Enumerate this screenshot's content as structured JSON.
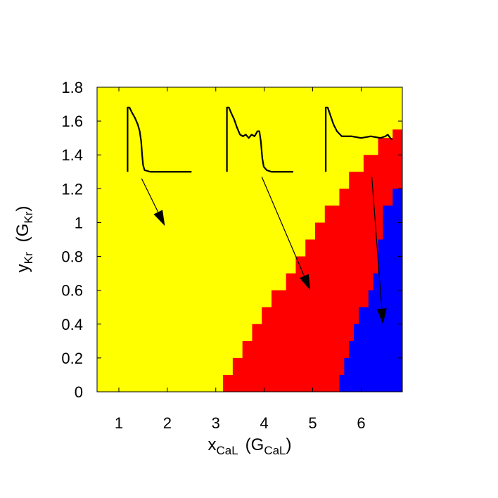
{
  "chart_data": {
    "type": "heatmap",
    "title": "",
    "x_ticks": [
      "1",
      "2",
      "3",
      "4",
      "5",
      "6"
    ],
    "x_tick_values": [
      1,
      2,
      3,
      4,
      5,
      6
    ],
    "y_ticks": [
      "0",
      "0.2",
      "0.4",
      "0.6",
      "0.8",
      "1",
      "1.2",
      "1.4",
      "1.6",
      "1.8"
    ],
    "y_tick_values": [
      0,
      0.2,
      0.4,
      0.6,
      0.8,
      1.0,
      1.2,
      1.4,
      1.6,
      1.8
    ],
    "xlim": [
      0.55,
      6.85
    ],
    "ylim": [
      0,
      1.8
    ],
    "xlabel": {
      "main": "x",
      "sub": "CaL",
      "paren_main": "(G",
      "paren_sub": "CaL",
      "paren_close": ")"
    },
    "ylabel": {
      "main": "y",
      "sub": "Kr",
      "paren_main": "(G",
      "paren_sub": "Kr",
      "paren_close": ")"
    },
    "region_colors": {
      "region_1": "#ffff00",
      "region_2": "#ff0000",
      "region_3": "#0000ff"
    },
    "region_2_boundary": [
      [
        3.15,
        0.0
      ],
      [
        3.15,
        0.1
      ],
      [
        3.35,
        0.1
      ],
      [
        3.35,
        0.2
      ],
      [
        3.55,
        0.2
      ],
      [
        3.55,
        0.3
      ],
      [
        3.75,
        0.3
      ],
      [
        3.75,
        0.4
      ],
      [
        3.95,
        0.4
      ],
      [
        3.95,
        0.5
      ],
      [
        4.15,
        0.5
      ],
      [
        4.15,
        0.6
      ],
      [
        4.45,
        0.6
      ],
      [
        4.45,
        0.7
      ],
      [
        4.65,
        0.7
      ],
      [
        4.65,
        0.8
      ],
      [
        4.85,
        0.8
      ],
      [
        4.85,
        0.9
      ],
      [
        5.05,
        0.9
      ],
      [
        5.05,
        1.0
      ],
      [
        5.25,
        1.0
      ],
      [
        5.25,
        1.1
      ],
      [
        5.55,
        1.1
      ],
      [
        5.55,
        1.2
      ],
      [
        5.75,
        1.2
      ],
      [
        5.75,
        1.3
      ],
      [
        6.05,
        1.3
      ],
      [
        6.05,
        1.4
      ],
      [
        6.35,
        1.4
      ],
      [
        6.35,
        1.5
      ],
      [
        6.65,
        1.5
      ],
      [
        6.65,
        1.55
      ],
      [
        6.85,
        1.55
      ],
      [
        6.85,
        0.0
      ]
    ],
    "region_3_boundary": [
      [
        5.55,
        0.0
      ],
      [
        5.55,
        0.1
      ],
      [
        5.65,
        0.1
      ],
      [
        5.65,
        0.2
      ],
      [
        5.75,
        0.2
      ],
      [
        5.75,
        0.3
      ],
      [
        5.85,
        0.3
      ],
      [
        5.85,
        0.4
      ],
      [
        5.95,
        0.4
      ],
      [
        5.95,
        0.5
      ],
      [
        6.15,
        0.5
      ],
      [
        6.15,
        0.6
      ],
      [
        6.25,
        0.6
      ],
      [
        6.25,
        0.7
      ],
      [
        6.35,
        0.7
      ],
      [
        6.35,
        0.9
      ],
      [
        6.45,
        0.9
      ],
      [
        6.45,
        1.1
      ],
      [
        6.65,
        1.1
      ],
      [
        6.65,
        1.2
      ],
      [
        6.85,
        1.2
      ],
      [
        6.85,
        0.0
      ]
    ],
    "annotations": [
      {
        "name": "trace-1",
        "trace": [
          [
            1.18,
            1.3
          ],
          [
            1.18,
            1.68
          ],
          [
            1.22,
            1.68
          ],
          [
            1.27,
            1.65
          ],
          [
            1.33,
            1.62
          ],
          [
            1.39,
            1.58
          ],
          [
            1.43,
            1.54
          ],
          [
            1.46,
            1.48
          ],
          [
            1.48,
            1.4
          ],
          [
            1.5,
            1.34
          ],
          [
            1.53,
            1.31
          ],
          [
            1.65,
            1.3
          ],
          [
            2.5,
            1.3
          ]
        ],
        "arrow_from": [
          1.47,
          1.26
        ],
        "arrow_to": [
          1.95,
          0.98
        ]
      },
      {
        "name": "trace-2",
        "trace": [
          [
            3.23,
            1.3
          ],
          [
            3.23,
            1.68
          ],
          [
            3.27,
            1.68
          ],
          [
            3.33,
            1.64
          ],
          [
            3.38,
            1.61
          ],
          [
            3.44,
            1.56
          ],
          [
            3.5,
            1.52
          ],
          [
            3.56,
            1.51
          ],
          [
            3.62,
            1.52
          ],
          [
            3.68,
            1.5
          ],
          [
            3.74,
            1.52
          ],
          [
            3.8,
            1.51
          ],
          [
            3.86,
            1.54
          ],
          [
            3.9,
            1.54
          ],
          [
            3.93,
            1.48
          ],
          [
            3.96,
            1.38
          ],
          [
            3.99,
            1.33
          ],
          [
            4.05,
            1.31
          ],
          [
            4.15,
            1.3
          ],
          [
            4.6,
            1.3
          ]
        ],
        "arrow_from": [
          3.95,
          1.27
        ],
        "arrow_to": [
          4.95,
          0.6
        ]
      },
      {
        "name": "trace-3",
        "trace": [
          [
            5.27,
            1.3
          ],
          [
            5.27,
            1.68
          ],
          [
            5.31,
            1.68
          ],
          [
            5.37,
            1.63
          ],
          [
            5.43,
            1.58
          ],
          [
            5.5,
            1.54
          ],
          [
            5.6,
            1.51
          ],
          [
            5.8,
            1.51
          ],
          [
            6.0,
            1.5
          ],
          [
            6.2,
            1.51
          ],
          [
            6.4,
            1.5
          ],
          [
            6.5,
            1.51
          ],
          [
            6.55,
            1.52
          ],
          [
            6.6,
            1.5
          ],
          [
            6.64,
            1.49
          ]
        ],
        "arrow_from": [
          6.22,
          1.27
        ],
        "arrow_to": [
          6.45,
          0.4
        ]
      }
    ]
  }
}
